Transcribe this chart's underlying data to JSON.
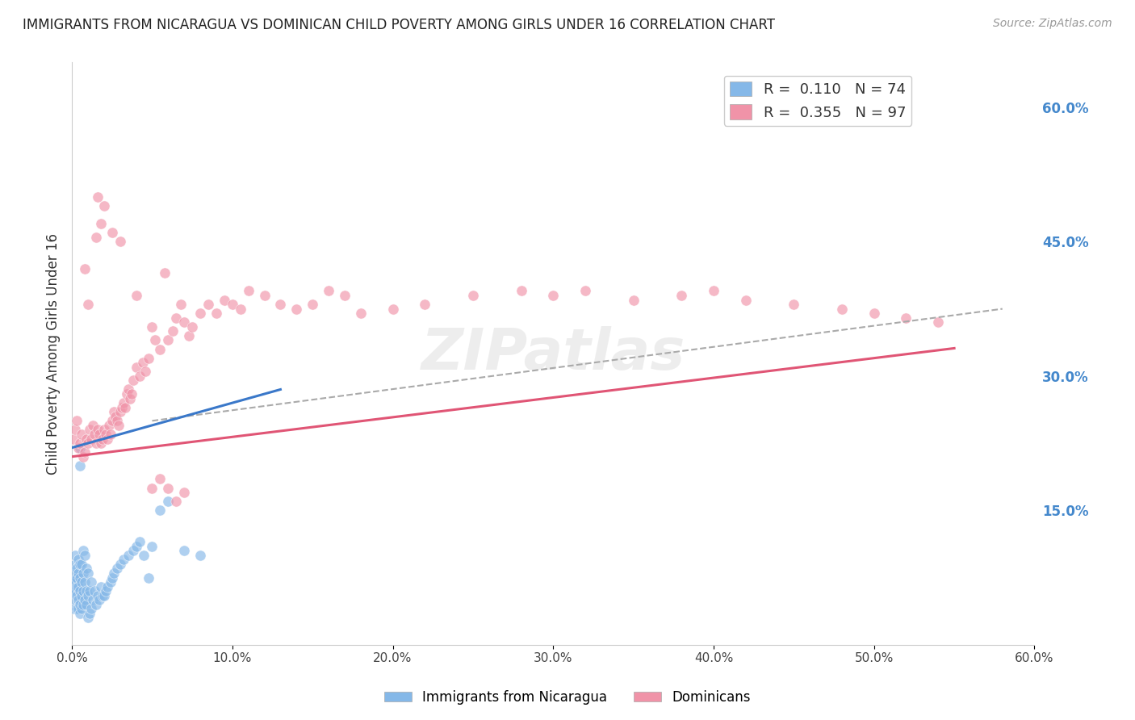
{
  "title": "IMMIGRANTS FROM NICARAGUA VS DOMINICAN CHILD POVERTY AMONG GIRLS UNDER 16 CORRELATION CHART",
  "source": "Source: ZipAtlas.com",
  "ylabel": "Child Poverty Among Girls Under 16",
  "xlim": [
    0.0,
    0.6
  ],
  "ylim": [
    0.0,
    0.65
  ],
  "r_nicaragua": 0.11,
  "n_nicaragua": 74,
  "r_dominican": 0.355,
  "n_dominican": 97,
  "color_nicaragua": "#85b8e8",
  "color_dominican": "#f093a8",
  "color_line_nicaragua": "#3a78c9",
  "color_line_dominican": "#e05575",
  "color_line_dashed": "#aaaaaa",
  "watermark": "ZIPatlas",
  "background_color": "#ffffff",
  "grid_color": "#cccccc",
  "nicaragua_x": [
    0.001,
    0.001,
    0.001,
    0.002,
    0.002,
    0.002,
    0.002,
    0.002,
    0.002,
    0.003,
    0.003,
    0.003,
    0.003,
    0.003,
    0.004,
    0.004,
    0.004,
    0.004,
    0.004,
    0.005,
    0.005,
    0.005,
    0.005,
    0.005,
    0.005,
    0.005,
    0.006,
    0.006,
    0.006,
    0.006,
    0.007,
    0.007,
    0.007,
    0.007,
    0.008,
    0.008,
    0.008,
    0.009,
    0.009,
    0.009,
    0.01,
    0.01,
    0.01,
    0.011,
    0.011,
    0.012,
    0.012,
    0.013,
    0.014,
    0.015,
    0.016,
    0.017,
    0.018,
    0.019,
    0.02,
    0.021,
    0.022,
    0.024,
    0.025,
    0.026,
    0.028,
    0.03,
    0.032,
    0.035,
    0.038,
    0.04,
    0.042,
    0.045,
    0.048,
    0.05,
    0.055,
    0.06,
    0.07,
    0.08
  ],
  "nicaragua_y": [
    0.04,
    0.06,
    0.07,
    0.05,
    0.06,
    0.07,
    0.08,
    0.09,
    0.1,
    0.04,
    0.055,
    0.065,
    0.075,
    0.085,
    0.04,
    0.05,
    0.065,
    0.08,
    0.095,
    0.035,
    0.045,
    0.06,
    0.075,
    0.09,
    0.2,
    0.22,
    0.04,
    0.055,
    0.07,
    0.09,
    0.045,
    0.06,
    0.08,
    0.105,
    0.05,
    0.07,
    0.1,
    0.045,
    0.06,
    0.085,
    0.03,
    0.055,
    0.08,
    0.035,
    0.06,
    0.04,
    0.07,
    0.05,
    0.06,
    0.045,
    0.055,
    0.05,
    0.065,
    0.055,
    0.055,
    0.06,
    0.065,
    0.07,
    0.075,
    0.08,
    0.085,
    0.09,
    0.095,
    0.1,
    0.105,
    0.11,
    0.115,
    0.1,
    0.075,
    0.11,
    0.15,
    0.16,
    0.105,
    0.1
  ],
  "dominican_x": [
    0.001,
    0.002,
    0.003,
    0.004,
    0.005,
    0.006,
    0.007,
    0.008,
    0.008,
    0.009,
    0.01,
    0.01,
    0.011,
    0.012,
    0.013,
    0.014,
    0.015,
    0.015,
    0.016,
    0.017,
    0.018,
    0.019,
    0.02,
    0.021,
    0.022,
    0.023,
    0.024,
    0.025,
    0.026,
    0.027,
    0.028,
    0.029,
    0.03,
    0.031,
    0.032,
    0.033,
    0.034,
    0.035,
    0.036,
    0.037,
    0.038,
    0.04,
    0.042,
    0.044,
    0.046,
    0.048,
    0.05,
    0.052,
    0.055,
    0.058,
    0.06,
    0.063,
    0.065,
    0.068,
    0.07,
    0.073,
    0.075,
    0.08,
    0.085,
    0.09,
    0.095,
    0.1,
    0.105,
    0.11,
    0.12,
    0.13,
    0.14,
    0.15,
    0.16,
    0.17,
    0.18,
    0.2,
    0.22,
    0.25,
    0.28,
    0.3,
    0.32,
    0.35,
    0.38,
    0.4,
    0.42,
    0.45,
    0.48,
    0.5,
    0.52,
    0.54,
    0.016,
    0.018,
    0.02,
    0.025,
    0.03,
    0.04,
    0.05,
    0.055,
    0.06,
    0.065,
    0.07
  ],
  "dominican_y": [
    0.23,
    0.24,
    0.25,
    0.22,
    0.225,
    0.235,
    0.21,
    0.215,
    0.42,
    0.23,
    0.225,
    0.38,
    0.24,
    0.23,
    0.245,
    0.235,
    0.225,
    0.455,
    0.24,
    0.235,
    0.225,
    0.23,
    0.24,
    0.235,
    0.23,
    0.245,
    0.235,
    0.25,
    0.26,
    0.255,
    0.25,
    0.245,
    0.26,
    0.265,
    0.27,
    0.265,
    0.28,
    0.285,
    0.275,
    0.28,
    0.295,
    0.31,
    0.3,
    0.315,
    0.305,
    0.32,
    0.355,
    0.34,
    0.33,
    0.415,
    0.34,
    0.35,
    0.365,
    0.38,
    0.36,
    0.345,
    0.355,
    0.37,
    0.38,
    0.37,
    0.385,
    0.38,
    0.375,
    0.395,
    0.39,
    0.38,
    0.375,
    0.38,
    0.395,
    0.39,
    0.37,
    0.375,
    0.38,
    0.39,
    0.395,
    0.39,
    0.395,
    0.385,
    0.39,
    0.395,
    0.385,
    0.38,
    0.375,
    0.37,
    0.365,
    0.36,
    0.5,
    0.47,
    0.49,
    0.46,
    0.45,
    0.39,
    0.175,
    0.185,
    0.175,
    0.16,
    0.17
  ]
}
